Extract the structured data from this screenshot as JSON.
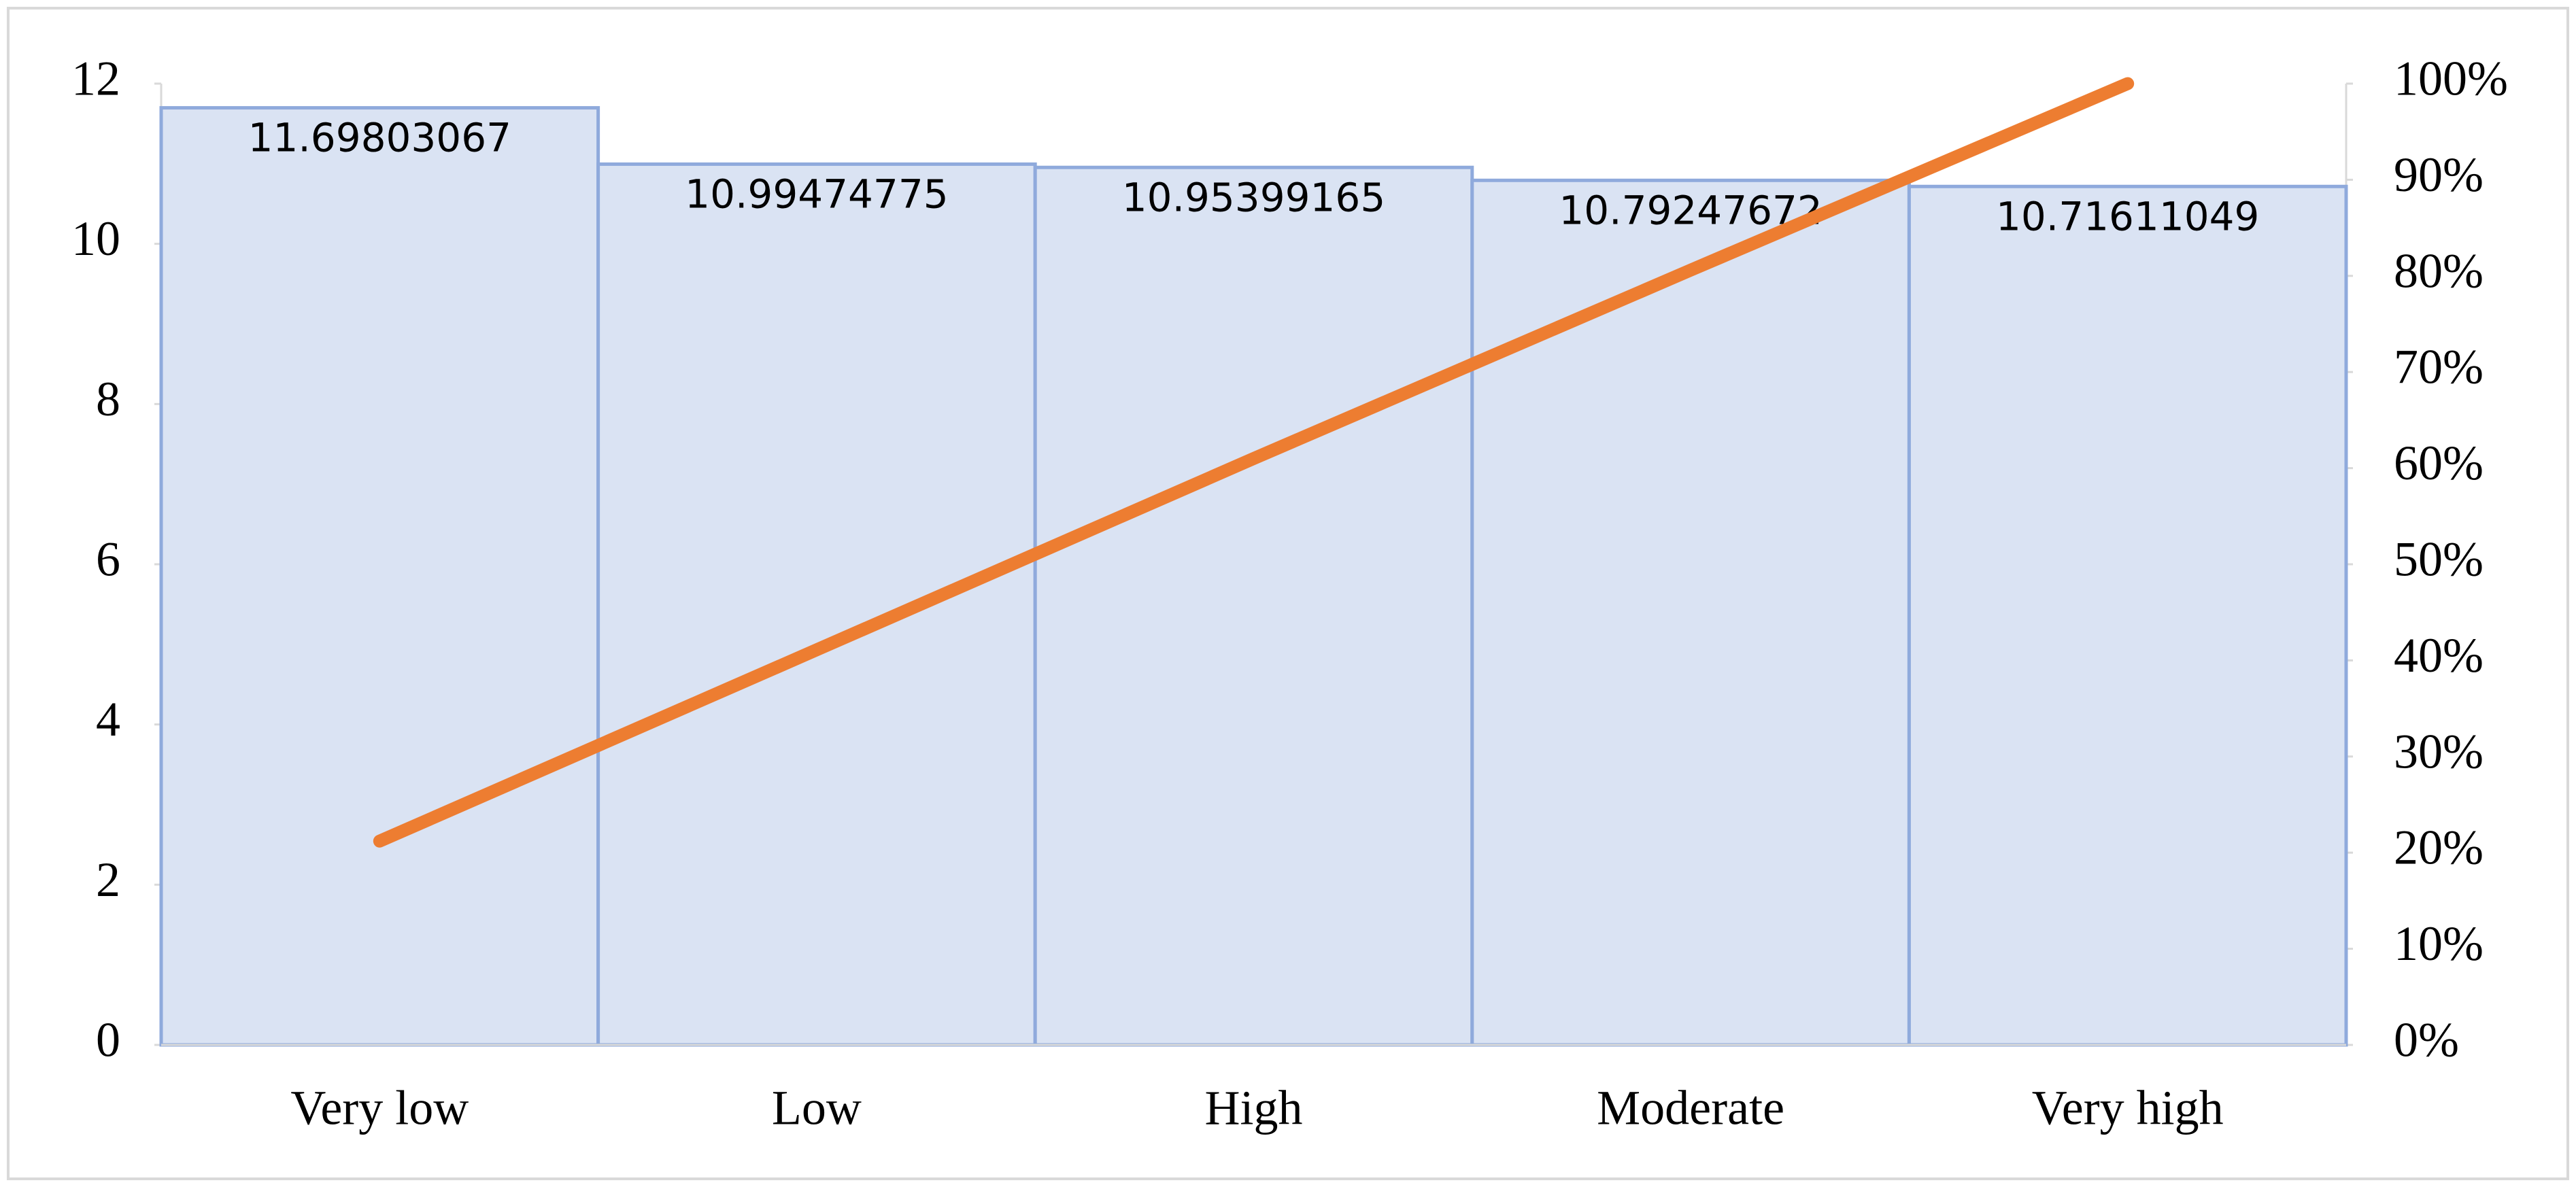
{
  "chart_data": {
    "type": "bar",
    "categories": [
      "Very low",
      "Low",
      "High",
      "Moderate",
      "Very high"
    ],
    "series": [
      {
        "type": "bar",
        "color": "#dae3f3",
        "edge_color": "#8faadc",
        "values": [
          11.69803067,
          10.99474775,
          10.95399165,
          10.79247672,
          10.71611049
        ]
      },
      {
        "type": "line",
        "axis": "y2",
        "color": "#ed7d31",
        "values": [
          21.2,
          41.1,
          61.0,
          80.6,
          100
        ]
      }
    ],
    "ylim": [
      0,
      12
    ],
    "yticks": [
      0,
      2,
      4,
      6,
      8,
      10,
      12
    ],
    "y2lim": [
      0,
      100
    ],
    "y2ticks": [
      {
        "value": 0,
        "label": "0%"
      },
      {
        "value": 10,
        "label": "10%"
      },
      {
        "value": 20,
        "label": "20%"
      },
      {
        "value": 30,
        "label": "30%"
      },
      {
        "value": 40,
        "label": "40%"
      },
      {
        "value": 50,
        "label": "50%"
      },
      {
        "value": 60,
        "label": "60%"
      },
      {
        "value": 70,
        "label": "70%"
      },
      {
        "value": 80,
        "label": "80%"
      },
      {
        "value": 90,
        "label": "90%"
      },
      {
        "value": 100,
        "label": "100%"
      }
    ]
  }
}
